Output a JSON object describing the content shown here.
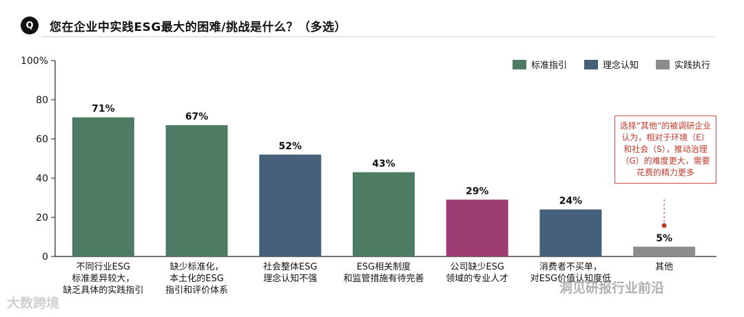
{
  "header": {
    "badge": "Q",
    "title": "您在企业中实践ESG最大的困难/挑战是什么？（多选）"
  },
  "legend": [
    {
      "label": "标准指引",
      "color": "#4e7b63"
    },
    {
      "label": "理念认知",
      "color": "#45617a"
    },
    {
      "label": "实践执行",
      "color": "#8c8c8c"
    }
  ],
  "annotation": "选择“其他”的被调研企业认为，相对于环境（E）和社会（S），推动治理（G）的难度更大，需要花费的精力更多",
  "annotation_color": "#c0392b",
  "watermarks": {
    "left": "大数跨境",
    "right": "洞见研报行业前沿"
  },
  "chart_data": {
    "type": "bar",
    "ylim": [
      0,
      100
    ],
    "yticks": [
      "0",
      "20",
      "40",
      "60",
      "80",
      "100%"
    ],
    "categories": [
      {
        "lines": [
          "不同行业ESG",
          "标准差异较大，",
          "缺乏具体的实践指引"
        ],
        "value": 71,
        "label": "71%",
        "group": "标准指引",
        "color": "#4e7b63"
      },
      {
        "lines": [
          "缺少标准化，",
          "本土化的ESG",
          "指引和评价体系"
        ],
        "value": 67,
        "label": "67%",
        "group": "标准指引",
        "color": "#4e7b63"
      },
      {
        "lines": [
          "社会整体ESG",
          "理念认知不强"
        ],
        "value": 52,
        "label": "52%",
        "group": "理念认知",
        "color": "#45617a"
      },
      {
        "lines": [
          "ESG相关制度",
          "和监管措施有待完善"
        ],
        "value": 43,
        "label": "43%",
        "group": "标准指引",
        "color": "#4e7b63"
      },
      {
        "lines": [
          "公司缺少ESG",
          "领域的专业人才"
        ],
        "value": 29,
        "label": "29%",
        "group": "",
        "color": "#9b3c73"
      },
      {
        "lines": [
          "消费者不买单，",
          "对ESG价值认知度低"
        ],
        "value": 24,
        "label": "24%",
        "group": "理念认知",
        "color": "#45617a"
      },
      {
        "lines": [
          "其他"
        ],
        "value": 5,
        "label": "5%",
        "group": "实践执行",
        "color": "#8c8c8c"
      }
    ]
  }
}
